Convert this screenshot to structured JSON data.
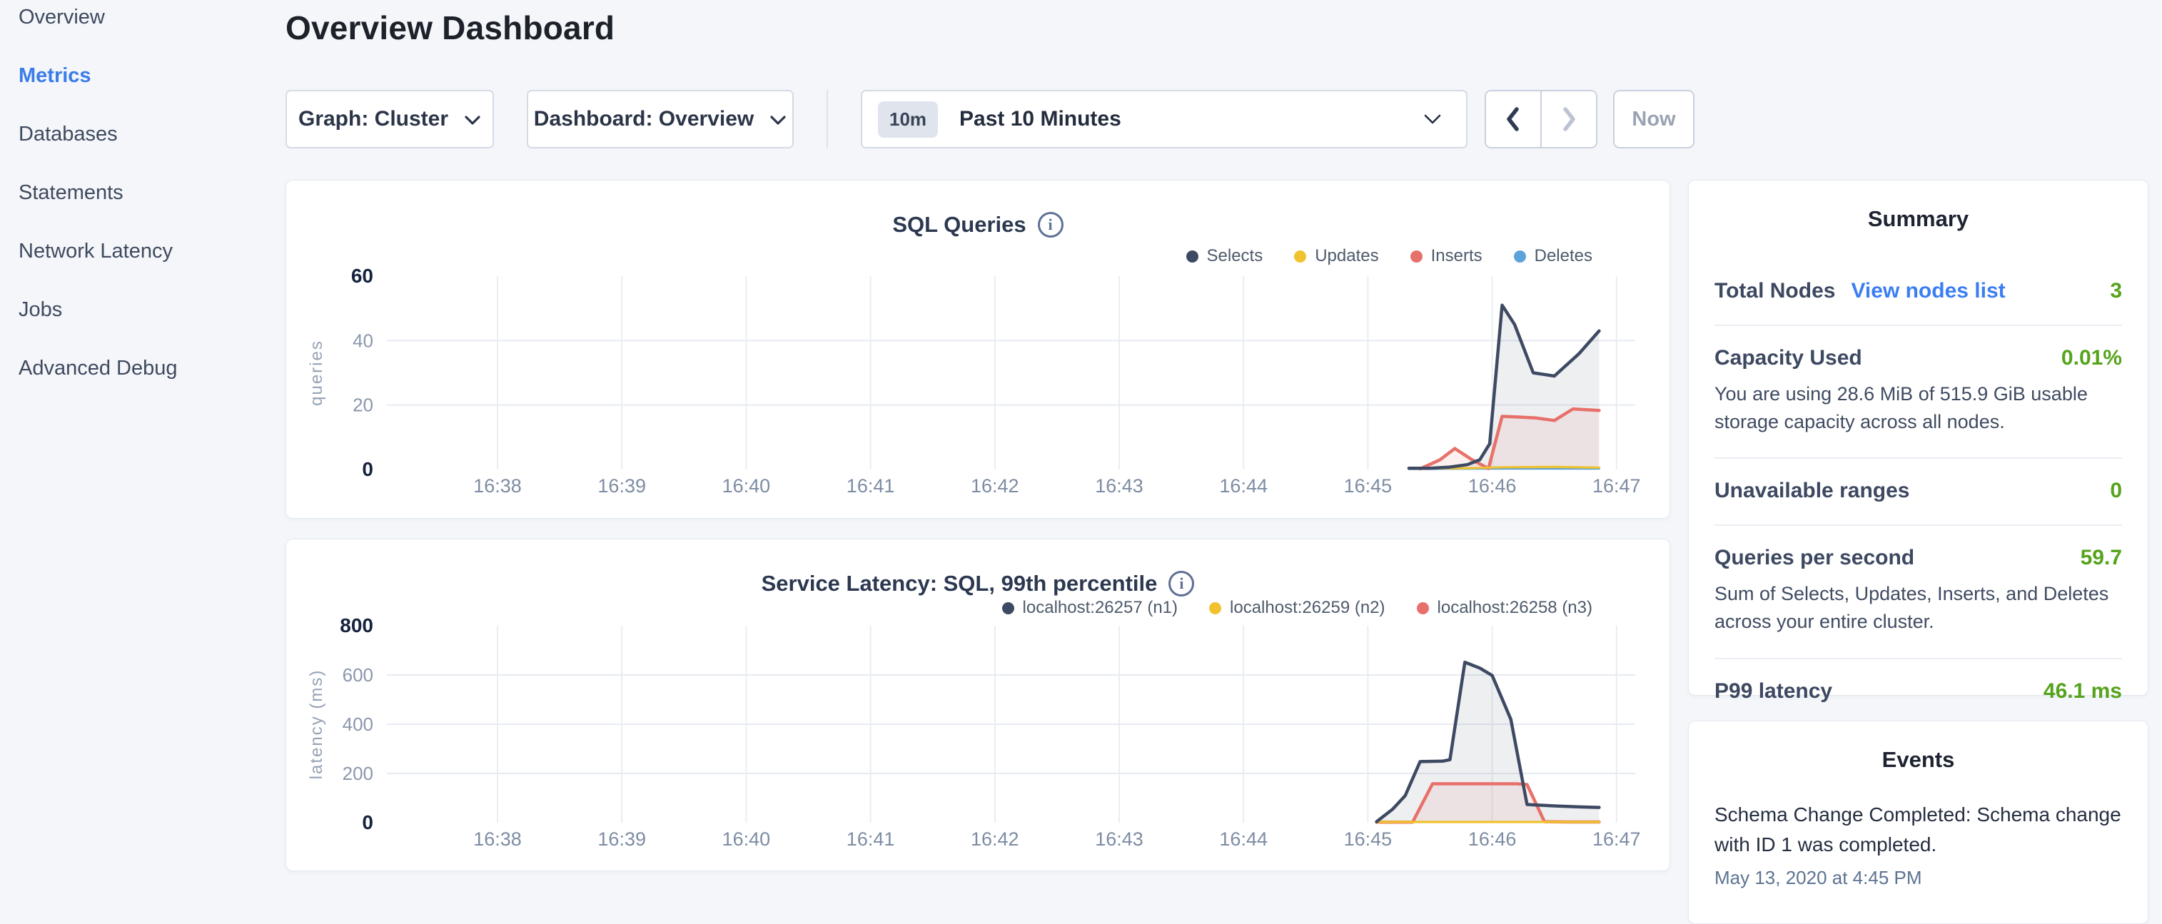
{
  "page": {
    "title": "Overview Dashboard"
  },
  "sidebar": {
    "items": [
      {
        "label": "Overview",
        "active": false
      },
      {
        "label": "Metrics",
        "active": true
      },
      {
        "label": "Databases",
        "active": false
      },
      {
        "label": "Statements",
        "active": false
      },
      {
        "label": "Network Latency",
        "active": false
      },
      {
        "label": "Jobs",
        "active": false
      },
      {
        "label": "Advanced Debug",
        "active": false
      }
    ],
    "active_color": "#3a7ce8"
  },
  "controls": {
    "graph_dropdown_label": "Graph: Cluster",
    "dashboard_dropdown_label": "Dashboard: Overview",
    "time_window_badge": "10m",
    "time_window_label": "Past 10 Minutes",
    "now_button_label": "Now"
  },
  "summary": {
    "heading": "Summary",
    "total_nodes_label": "Total Nodes",
    "view_nodes_link": "View nodes list",
    "total_nodes_value": "3",
    "capacity_label": "Capacity Used",
    "capacity_value": "0.01%",
    "capacity_note": "You are using 28.6 MiB of 515.9 GiB usable storage capacity across all nodes.",
    "unavailable_label": "Unavailable ranges",
    "unavailable_value": "0",
    "qps_label": "Queries per second",
    "qps_value": "59.7",
    "qps_note": "Sum of Selects, Updates, Inserts, and Deletes across your entire cluster.",
    "p99_label": "P99 latency",
    "p99_value": "46.1 ms",
    "value_color": "#55a31b",
    "link_color": "#3b7ef2"
  },
  "events": {
    "heading": "Events",
    "items": [
      {
        "message": "Schema Change Completed: Schema change with ID 1 was completed.",
        "timestamp": "May 13, 2020 at 4:45 PM"
      }
    ]
  },
  "chart_data": [
    {
      "type": "area",
      "title": "SQL Queries",
      "ylabel": "queries",
      "ylim": [
        0,
        60
      ],
      "yticks": [
        0,
        20,
        40,
        60
      ],
      "xticks": [
        "16:38",
        "16:39",
        "16:40",
        "16:41",
        "16:42",
        "16:43",
        "16:44",
        "16:45",
        "16:46",
        "16:47"
      ],
      "legend_position": "top-right",
      "grid": true,
      "series": [
        {
          "name": "Selects",
          "color": "#3e4a63",
          "fill": "rgba(64,78,104,0.09)",
          "points": [
            [
              45.33,
              0.4
            ],
            [
              45.5,
              0.4
            ],
            [
              45.65,
              0.7
            ],
            [
              45.8,
              1.5
            ],
            [
              45.9,
              3
            ],
            [
              45.98,
              8
            ],
            [
              46.08,
              51
            ],
            [
              46.18,
              45
            ],
            [
              46.33,
              30
            ],
            [
              46.5,
              29
            ],
            [
              46.7,
              36
            ],
            [
              46.86,
              43
            ]
          ]
        },
        {
          "name": "Updates",
          "color": "#f0c22f",
          "fill": null,
          "points": [
            [
              45.33,
              0.3
            ],
            [
              45.8,
              0.4
            ],
            [
              46.1,
              0.7
            ],
            [
              46.5,
              0.8
            ],
            [
              46.86,
              0.6
            ]
          ]
        },
        {
          "name": "Inserts",
          "color": "#e8706a",
          "fill": "rgba(233,113,107,0.10)",
          "points": [
            [
              45.42,
              0.2
            ],
            [
              45.58,
              3
            ],
            [
              45.7,
              6.5
            ],
            [
              45.83,
              3.2
            ],
            [
              45.97,
              0.3
            ],
            [
              46.08,
              16.5
            ],
            [
              46.2,
              16.3
            ],
            [
              46.35,
              16
            ],
            [
              46.5,
              15.2
            ],
            [
              46.65,
              18.8
            ],
            [
              46.86,
              18.3
            ]
          ]
        },
        {
          "name": "Deletes",
          "color": "#5ba3d9",
          "fill": null,
          "points": [
            [
              45.33,
              0.2
            ],
            [
              46.0,
              0.3
            ],
            [
              46.5,
              0.3
            ],
            [
              46.86,
              0.3
            ]
          ]
        }
      ]
    },
    {
      "type": "area",
      "title": "Service Latency: SQL, 99th percentile",
      "ylabel": "latency (ms)",
      "ylim": [
        0,
        800
      ],
      "yticks": [
        0,
        200,
        400,
        600,
        800
      ],
      "xticks": [
        "16:38",
        "16:39",
        "16:40",
        "16:41",
        "16:42",
        "16:43",
        "16:44",
        "16:45",
        "16:46",
        "16:47"
      ],
      "legend_position": "top-right",
      "grid": true,
      "series": [
        {
          "name": "localhost:26257 (n1)",
          "color": "#3e4a63",
          "fill": "rgba(64,78,104,0.09)",
          "points": [
            [
              45.07,
              4
            ],
            [
              45.2,
              55
            ],
            [
              45.3,
              110
            ],
            [
              45.42,
              248
            ],
            [
              45.6,
              250
            ],
            [
              45.66,
              256
            ],
            [
              45.78,
              652
            ],
            [
              45.9,
              628
            ],
            [
              46.0,
              598
            ],
            [
              46.15,
              420
            ],
            [
              46.28,
              74
            ],
            [
              46.5,
              68
            ],
            [
              46.7,
              64
            ],
            [
              46.86,
              62
            ]
          ]
        },
        {
          "name": "localhost:26259 (n2)",
          "color": "#f0c22f",
          "fill": null,
          "points": [
            [
              45.07,
              3
            ],
            [
              45.5,
              3
            ],
            [
              46.0,
              3
            ],
            [
              46.5,
              3
            ],
            [
              46.86,
              3
            ]
          ]
        },
        {
          "name": "localhost:26258 (n3)",
          "color": "#e8706a",
          "fill": "rgba(233,113,107,0.10)",
          "points": [
            [
              45.07,
              2
            ],
            [
              45.36,
              2
            ],
            [
              45.52,
              158
            ],
            [
              46.2,
              158
            ],
            [
              46.28,
              155
            ],
            [
              46.42,
              4
            ],
            [
              46.6,
              3
            ],
            [
              46.86,
              3
            ]
          ]
        }
      ]
    }
  ]
}
